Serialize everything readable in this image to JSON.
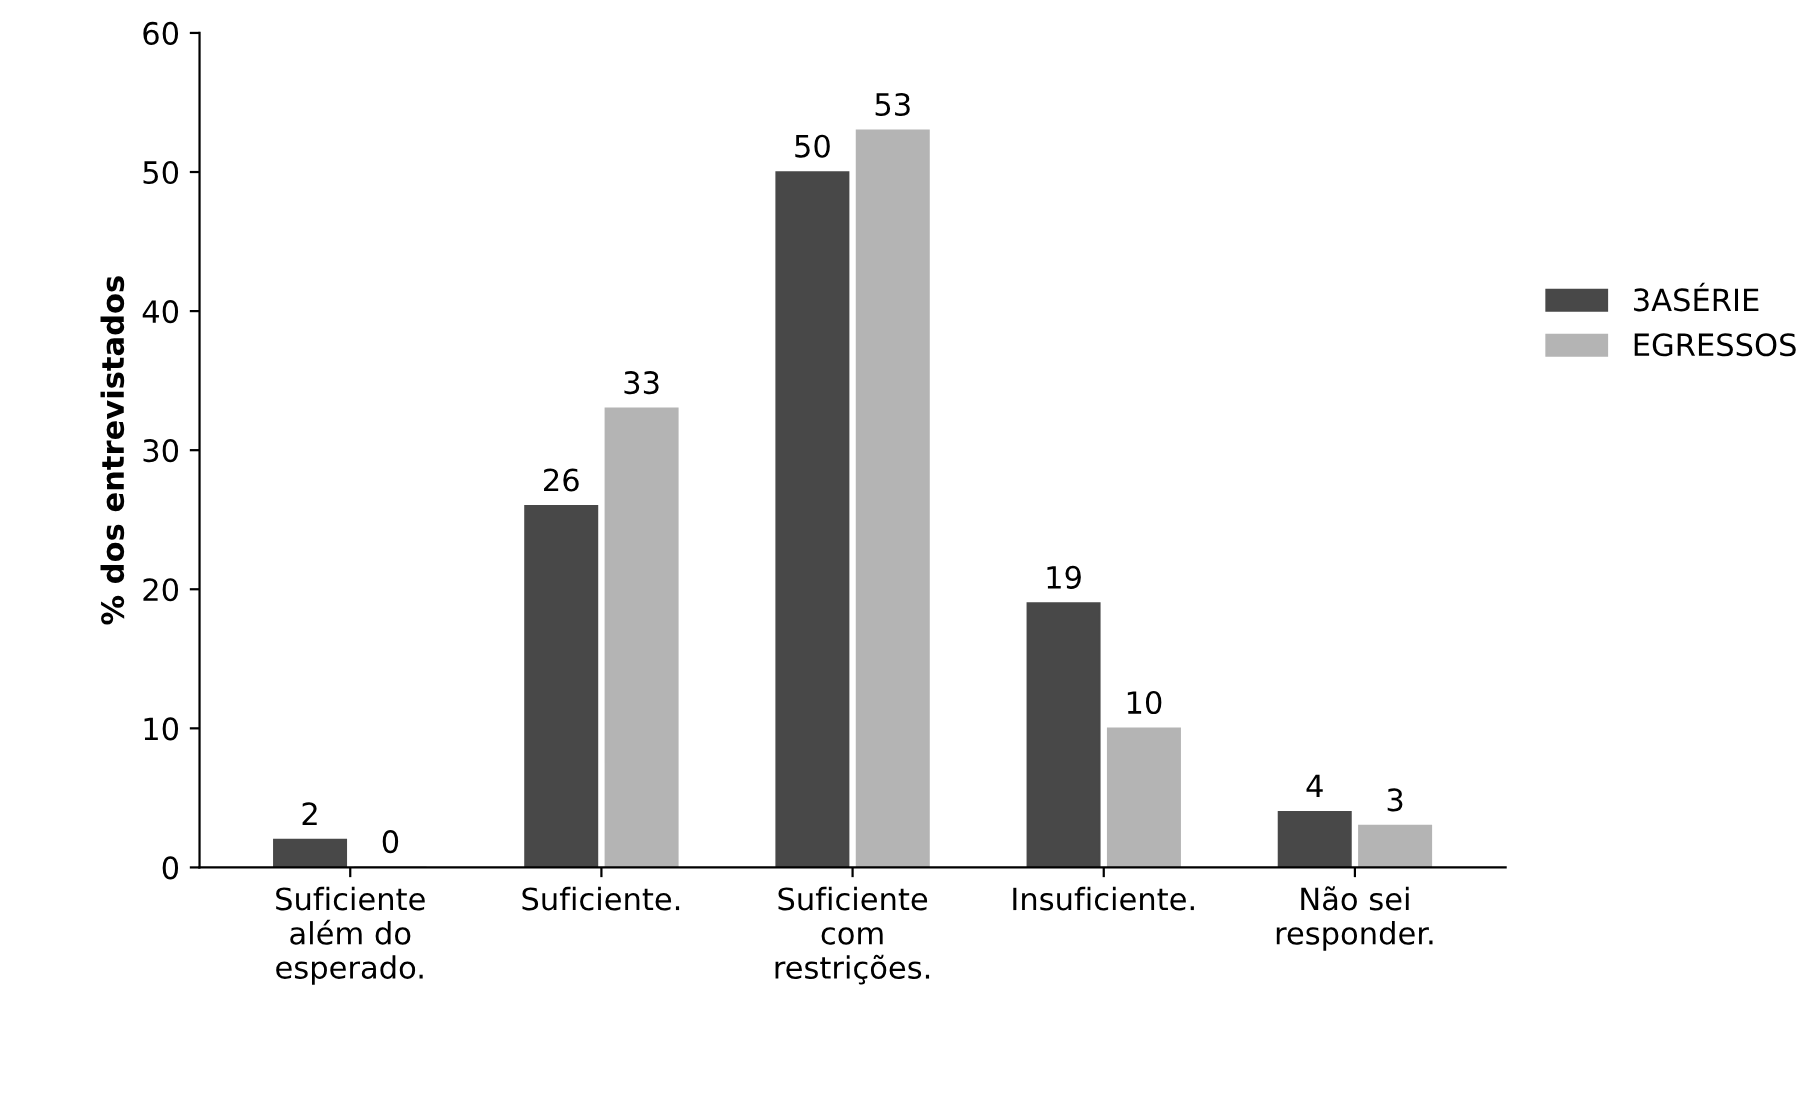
{
  "chart_data": {
    "type": "bar",
    "ylabel": "% dos entrevistados",
    "categories": [
      "Suficiente\nalém do\nesperado.",
      "Suficiente.",
      "Suficiente\ncom\nrestrições.",
      "Insuficiente.",
      "Não sei\nresponder."
    ],
    "series": [
      {
        "name": "3ASÉRIE",
        "color": "#484848",
        "values": [
          2,
          26,
          50,
          19,
          4
        ]
      },
      {
        "name": "EGRESSOS",
        "color": "#b4b4b4",
        "values": [
          0,
          33,
          53,
          10,
          3
        ]
      }
    ],
    "ylim": [
      0,
      60
    ],
    "yticks": [
      0,
      10,
      20,
      30,
      40,
      50,
      60
    ],
    "grid": false,
    "legend": "right",
    "data_labels": true
  }
}
